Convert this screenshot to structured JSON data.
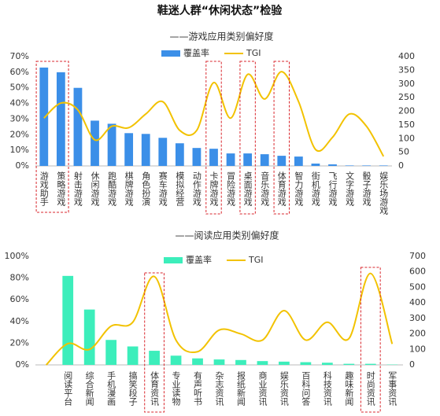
{
  "title": "鞋迷人群“休闲状态”检验",
  "chart_data": [
    {
      "type": "bar_line",
      "subtitle": "——游戏应用类别偏好度",
      "categories": [
        "游戏助手",
        "策略游戏",
        "射击游戏",
        "休闲游戏",
        "跑酷游戏",
        "棋牌游戏",
        "角色扮演",
        "赛车游戏",
        "模拟经营",
        "动作游戏",
        "卡牌游戏",
        "冒险游戏",
        "桌面游戏",
        "音乐游戏",
        "体育游戏",
        "智力游戏",
        "街机游戏",
        "飞行游戏",
        "文字游戏",
        "骰子游戏",
        "娱乐场游戏"
      ],
      "series": [
        {
          "name": "覆盖率",
          "type": "bar",
          "color": "#3b8fe8",
          "values": [
            63,
            60,
            50,
            29,
            27,
            21,
            20.5,
            18,
            14.5,
            11.5,
            11,
            8,
            8,
            7.5,
            6.5,
            6,
            1.5,
            1,
            0.3,
            0.3,
            0.3
          ]
        },
        {
          "name": "TGI",
          "type": "line",
          "axis": "y2",
          "color": "#f2c200",
          "values": [
            175,
            230,
            205,
            95,
            145,
            140,
            190,
            235,
            130,
            130,
            305,
            175,
            335,
            245,
            345,
            235,
            60,
            105,
            190,
            145,
            35
          ]
        }
      ],
      "ylim": [
        0,
        70
      ],
      "yticks": [
        {
          "value": 0,
          "label": "0%"
        },
        {
          "value": 10,
          "label": "10%"
        },
        {
          "value": 20,
          "label": "20%"
        },
        {
          "value": 30,
          "label": "30%"
        },
        {
          "value": 40,
          "label": "40%"
        },
        {
          "value": 50,
          "label": "50%"
        },
        {
          "value": 60,
          "label": "60%"
        },
        {
          "value": 70,
          "label": "70%"
        }
      ],
      "y2lim": [
        0,
        400
      ],
      "y2ticks": [
        0,
        50,
        100,
        150,
        200,
        250,
        300,
        350,
        400
      ],
      "grid": false,
      "legend": "top"
    },
    {
      "type": "bar_line",
      "subtitle": "——阅读应用类别偏好度",
      "categories": [
        null,
        "阅读平台",
        "综合新闻",
        "手机漫画",
        "搞笑段子",
        "体育资讯",
        "专业读物",
        "有声听书",
        "杂志资讯",
        "报纸新闻",
        "商业资讯",
        "娱乐资讯",
        "百科问答",
        "科技资讯",
        "趣味新闻",
        "时尚资讯",
        "军事资讯"
      ],
      "series": [
        {
          "name": "覆盖率",
          "type": "bar",
          "color": "#3ceebb",
          "values": [
            null,
            82,
            51,
            23,
            17,
            13,
            8.5,
            6,
            5,
            4.5,
            3.5,
            3,
            2.5,
            2,
            1,
            1,
            0.3
          ]
        },
        {
          "name": "TGI",
          "type": "line",
          "axis": "y2",
          "color": "#f2c200",
          "values": [
            0,
            137,
            100,
            250,
            275,
            570,
            160,
            85,
            225,
            200,
            160,
            350,
            160,
            275,
            170,
            590,
            135
          ]
        }
      ],
      "ylim": [
        0,
        100
      ],
      "yticks": [
        {
          "value": 0,
          "label": "0%"
        },
        {
          "value": 20,
          "label": "20%"
        },
        {
          "value": 40,
          "label": "40%"
        },
        {
          "value": 60,
          "label": "60%"
        },
        {
          "value": 80,
          "label": "80%"
        },
        {
          "value": 100,
          "label": "100%"
        }
      ],
      "y2lim": [
        0,
        700
      ],
      "y2ticks": [
        0,
        100,
        200,
        300,
        400,
        500,
        600,
        700
      ],
      "grid": false,
      "legend": "top"
    }
  ]
}
